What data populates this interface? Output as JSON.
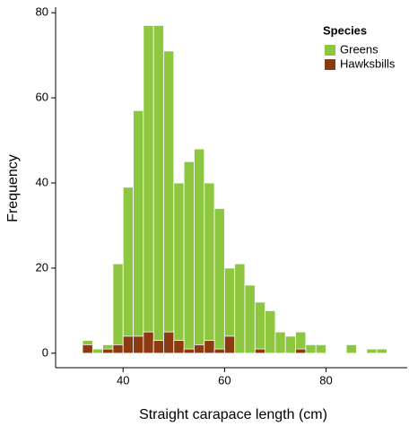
{
  "chart_data": {
    "type": "histogram",
    "xlabel": "Straight carapace length (cm)",
    "ylabel": "Frequency",
    "legend_title": "Species",
    "legend_position": "upper right",
    "bins": [
      32,
      34,
      36,
      38,
      40,
      42,
      44,
      46,
      48,
      50,
      52,
      54,
      56,
      58,
      60,
      62,
      64,
      66,
      68,
      70,
      72,
      74,
      76,
      78,
      80,
      82,
      84,
      86,
      88,
      90,
      92
    ],
    "series": [
      {
        "name": "Greens",
        "color": "#8dc63f",
        "values": [
          3,
          1,
          2,
          21,
          39,
          57,
          77,
          77,
          71,
          40,
          45,
          48,
          40,
          34,
          20,
          21,
          16,
          12,
          10,
          5,
          4,
          5,
          2,
          2,
          0,
          0,
          2,
          0,
          1,
          1
        ]
      },
      {
        "name": "Hawksbills",
        "color": "#8b3a12",
        "values": [
          2,
          0,
          1,
          2,
          4,
          4,
          5,
          3,
          5,
          3,
          1,
          2,
          3,
          1,
          4,
          0,
          0,
          1,
          0,
          0,
          0,
          1,
          0,
          0,
          0,
          0,
          0,
          0,
          0,
          0
        ]
      }
    ],
    "xlim": [
      26.7,
      96
    ],
    "ylim": [
      -3.4,
      81.3
    ],
    "xticks": [
      40,
      60,
      80
    ],
    "yticks": [
      0,
      20,
      40,
      60,
      80
    ]
  }
}
